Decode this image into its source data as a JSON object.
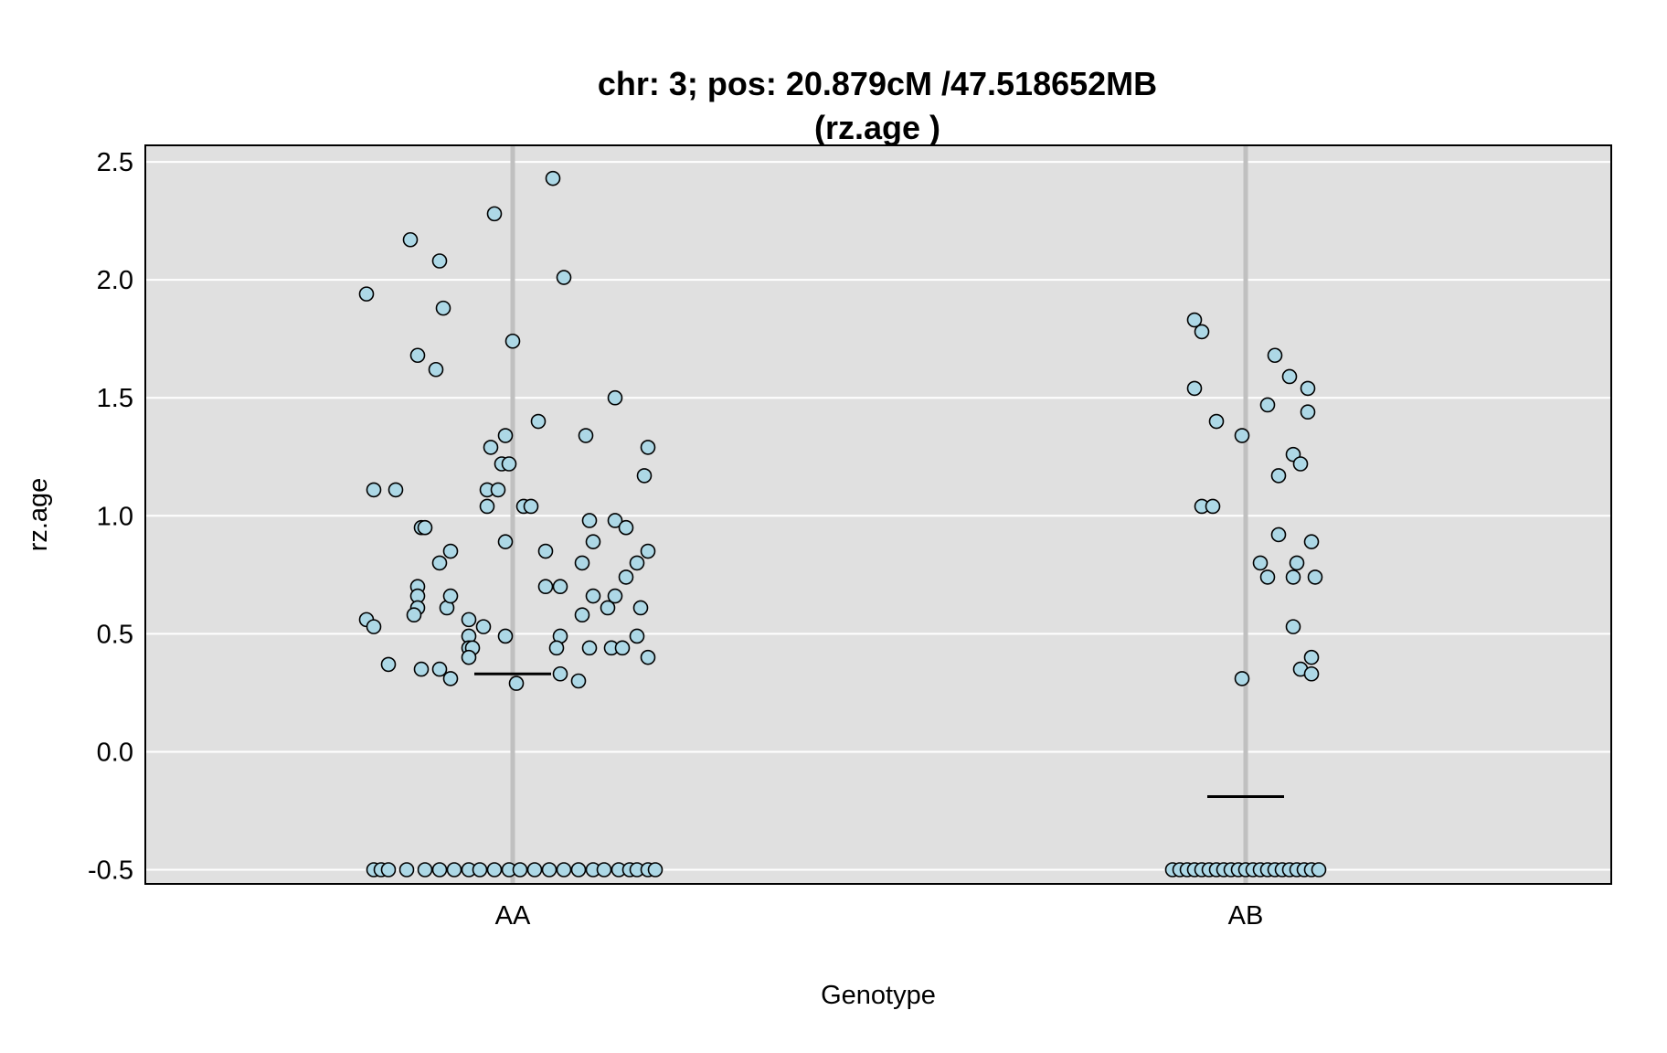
{
  "chart_data": {
    "type": "scatter",
    "title": "chr: 3; pos: 20.879cM /47.518652MB",
    "subtitle": "(rz.age )",
    "xlabel": "Genotype",
    "ylabel": "rz.age",
    "categories": [
      "AA",
      "AB"
    ],
    "ylim": [
      -0.56,
      2.57
    ],
    "yticks": [
      -0.5,
      0.0,
      0.5,
      1.0,
      1.5,
      2.0,
      2.5
    ],
    "ytick_labels": [
      "-0.5",
      "0.0",
      "0.5",
      "1.0",
      "1.5",
      "2.0",
      "2.5"
    ],
    "grid": true,
    "colors": {
      "panel": "#e0e0e0",
      "point_fill": "#add8e6",
      "point_stroke": "#000000",
      "category_line": "#c0c0c0",
      "grid": "#ffffff",
      "mean_line": "#000000"
    },
    "means": [
      0.33,
      -0.19
    ],
    "series": [
      {
        "category": "AA",
        "points": [
          {
            "x": -0.4,
            "y": 1.94
          },
          {
            "x": -0.38,
            "y": 1.11
          },
          {
            "x": -0.32,
            "y": 1.11
          },
          {
            "x": -0.28,
            "y": 2.17
          },
          {
            "x": -0.26,
            "y": 1.68
          },
          {
            "x": -0.2,
            "y": 2.08
          },
          {
            "x": -0.21,
            "y": 1.62
          },
          {
            "x": -0.19,
            "y": 1.88
          },
          {
            "x": -0.05,
            "y": 2.28
          },
          {
            "x": 0.0,
            "y": 1.74
          },
          {
            "x": 0.11,
            "y": 2.43
          },
          {
            "x": 0.14,
            "y": 2.01
          },
          {
            "x": -0.06,
            "y": 1.29
          },
          {
            "x": -0.02,
            "y": 1.34
          },
          {
            "x": -0.03,
            "y": 1.22
          },
          {
            "x": -0.01,
            "y": 1.22
          },
          {
            "x": 0.07,
            "y": 1.4
          },
          {
            "x": 0.2,
            "y": 1.34
          },
          {
            "x": 0.28,
            "y": 1.5
          },
          {
            "x": 0.37,
            "y": 1.29
          },
          {
            "x": 0.36,
            "y": 1.17
          },
          {
            "x": -0.07,
            "y": 1.11
          },
          {
            "x": -0.04,
            "y": 1.11
          },
          {
            "x": -0.07,
            "y": 1.04
          },
          {
            "x": 0.03,
            "y": 1.04
          },
          {
            "x": 0.05,
            "y": 1.04
          },
          {
            "x": -0.25,
            "y": 0.95
          },
          {
            "x": -0.24,
            "y": 0.95
          },
          {
            "x": -0.17,
            "y": 0.85
          },
          {
            "x": -0.2,
            "y": 0.8
          },
          {
            "x": -0.02,
            "y": 0.89
          },
          {
            "x": 0.09,
            "y": 0.85
          },
          {
            "x": 0.21,
            "y": 0.98
          },
          {
            "x": 0.22,
            "y": 0.89
          },
          {
            "x": 0.28,
            "y": 0.98
          },
          {
            "x": 0.31,
            "y": 0.95
          },
          {
            "x": 0.37,
            "y": 0.85
          },
          {
            "x": 0.34,
            "y": 0.8
          },
          {
            "x": 0.19,
            "y": 0.8
          },
          {
            "x": -0.26,
            "y": 0.7
          },
          {
            "x": -0.26,
            "y": 0.66
          },
          {
            "x": -0.26,
            "y": 0.61
          },
          {
            "x": -0.27,
            "y": 0.58
          },
          {
            "x": -0.18,
            "y": 0.61
          },
          {
            "x": -0.17,
            "y": 0.66
          },
          {
            "x": 0.09,
            "y": 0.7
          },
          {
            "x": 0.13,
            "y": 0.7
          },
          {
            "x": 0.22,
            "y": 0.66
          },
          {
            "x": 0.28,
            "y": 0.66
          },
          {
            "x": 0.31,
            "y": 0.74
          },
          {
            "x": 0.26,
            "y": 0.61
          },
          {
            "x": 0.35,
            "y": 0.61
          },
          {
            "x": 0.19,
            "y": 0.58
          },
          {
            "x": -0.4,
            "y": 0.56
          },
          {
            "x": -0.38,
            "y": 0.53
          },
          {
            "x": -0.12,
            "y": 0.56
          },
          {
            "x": -0.08,
            "y": 0.53
          },
          {
            "x": -0.12,
            "y": 0.49
          },
          {
            "x": -0.02,
            "y": 0.49
          },
          {
            "x": 0.13,
            "y": 0.49
          },
          {
            "x": 0.34,
            "y": 0.49
          },
          {
            "x": -0.12,
            "y": 0.44
          },
          {
            "x": -0.11,
            "y": 0.44
          },
          {
            "x": 0.12,
            "y": 0.44
          },
          {
            "x": 0.21,
            "y": 0.44
          },
          {
            "x": 0.27,
            "y": 0.44
          },
          {
            "x": 0.3,
            "y": 0.44
          },
          {
            "x": -0.12,
            "y": 0.4
          },
          {
            "x": 0.37,
            "y": 0.4
          },
          {
            "x": -0.34,
            "y": 0.37
          },
          {
            "x": -0.25,
            "y": 0.35
          },
          {
            "x": -0.2,
            "y": 0.35
          },
          {
            "x": -0.17,
            "y": 0.31
          },
          {
            "x": 0.13,
            "y": 0.33
          },
          {
            "x": 0.01,
            "y": 0.29
          },
          {
            "x": 0.18,
            "y": 0.3
          },
          {
            "x": -0.38,
            "y": -0.5
          },
          {
            "x": -0.36,
            "y": -0.5
          },
          {
            "x": -0.34,
            "y": -0.5
          },
          {
            "x": -0.29,
            "y": -0.5
          },
          {
            "x": -0.24,
            "y": -0.5
          },
          {
            "x": -0.2,
            "y": -0.5
          },
          {
            "x": -0.16,
            "y": -0.5
          },
          {
            "x": -0.12,
            "y": -0.5
          },
          {
            "x": -0.09,
            "y": -0.5
          },
          {
            "x": -0.05,
            "y": -0.5
          },
          {
            "x": -0.01,
            "y": -0.5
          },
          {
            "x": 0.02,
            "y": -0.5
          },
          {
            "x": 0.06,
            "y": -0.5
          },
          {
            "x": 0.1,
            "y": -0.5
          },
          {
            "x": 0.14,
            "y": -0.5
          },
          {
            "x": 0.18,
            "y": -0.5
          },
          {
            "x": 0.22,
            "y": -0.5
          },
          {
            "x": 0.25,
            "y": -0.5
          },
          {
            "x": 0.29,
            "y": -0.5
          },
          {
            "x": 0.32,
            "y": -0.5
          },
          {
            "x": 0.34,
            "y": -0.5
          },
          {
            "x": 0.37,
            "y": -0.5
          },
          {
            "x": 0.39,
            "y": -0.5
          }
        ]
      },
      {
        "category": "AB",
        "points": [
          {
            "x": -0.14,
            "y": 1.83
          },
          {
            "x": -0.12,
            "y": 1.78
          },
          {
            "x": -0.14,
            "y": 1.54
          },
          {
            "x": -0.08,
            "y": 1.4
          },
          {
            "x": -0.12,
            "y": 1.04
          },
          {
            "x": -0.09,
            "y": 1.04
          },
          {
            "x": -0.01,
            "y": 1.34
          },
          {
            "x": -0.01,
            "y": 0.31
          },
          {
            "x": 0.08,
            "y": 1.68
          },
          {
            "x": 0.06,
            "y": 1.47
          },
          {
            "x": 0.12,
            "y": 1.59
          },
          {
            "x": 0.17,
            "y": 1.54
          },
          {
            "x": 0.17,
            "y": 1.44
          },
          {
            "x": 0.13,
            "y": 1.26
          },
          {
            "x": 0.15,
            "y": 1.22
          },
          {
            "x": 0.09,
            "y": 1.17
          },
          {
            "x": 0.09,
            "y": 0.92
          },
          {
            "x": 0.18,
            "y": 0.89
          },
          {
            "x": 0.04,
            "y": 0.8
          },
          {
            "x": 0.06,
            "y": 0.74
          },
          {
            "x": 0.13,
            "y": 0.74
          },
          {
            "x": 0.14,
            "y": 0.8
          },
          {
            "x": 0.19,
            "y": 0.74
          },
          {
            "x": 0.13,
            "y": 0.53
          },
          {
            "x": 0.18,
            "y": 0.4
          },
          {
            "x": 0.15,
            "y": 0.35
          },
          {
            "x": 0.18,
            "y": 0.33
          },
          {
            "x": -0.2,
            "y": -0.5
          },
          {
            "x": -0.18,
            "y": -0.5
          },
          {
            "x": -0.16,
            "y": -0.5
          },
          {
            "x": -0.14,
            "y": -0.5
          },
          {
            "x": -0.12,
            "y": -0.5
          },
          {
            "x": -0.1,
            "y": -0.5
          },
          {
            "x": -0.08,
            "y": -0.5
          },
          {
            "x": -0.06,
            "y": -0.5
          },
          {
            "x": -0.04,
            "y": -0.5
          },
          {
            "x": -0.02,
            "y": -0.5
          },
          {
            "x": 0.0,
            "y": -0.5
          },
          {
            "x": 0.02,
            "y": -0.5
          },
          {
            "x": 0.04,
            "y": -0.5
          },
          {
            "x": 0.06,
            "y": -0.5
          },
          {
            "x": 0.08,
            "y": -0.5
          },
          {
            "x": 0.1,
            "y": -0.5
          },
          {
            "x": 0.12,
            "y": -0.5
          },
          {
            "x": 0.14,
            "y": -0.5
          },
          {
            "x": 0.16,
            "y": -0.5
          },
          {
            "x": 0.18,
            "y": -0.5
          },
          {
            "x": 0.2,
            "y": -0.5
          }
        ]
      }
    ]
  }
}
